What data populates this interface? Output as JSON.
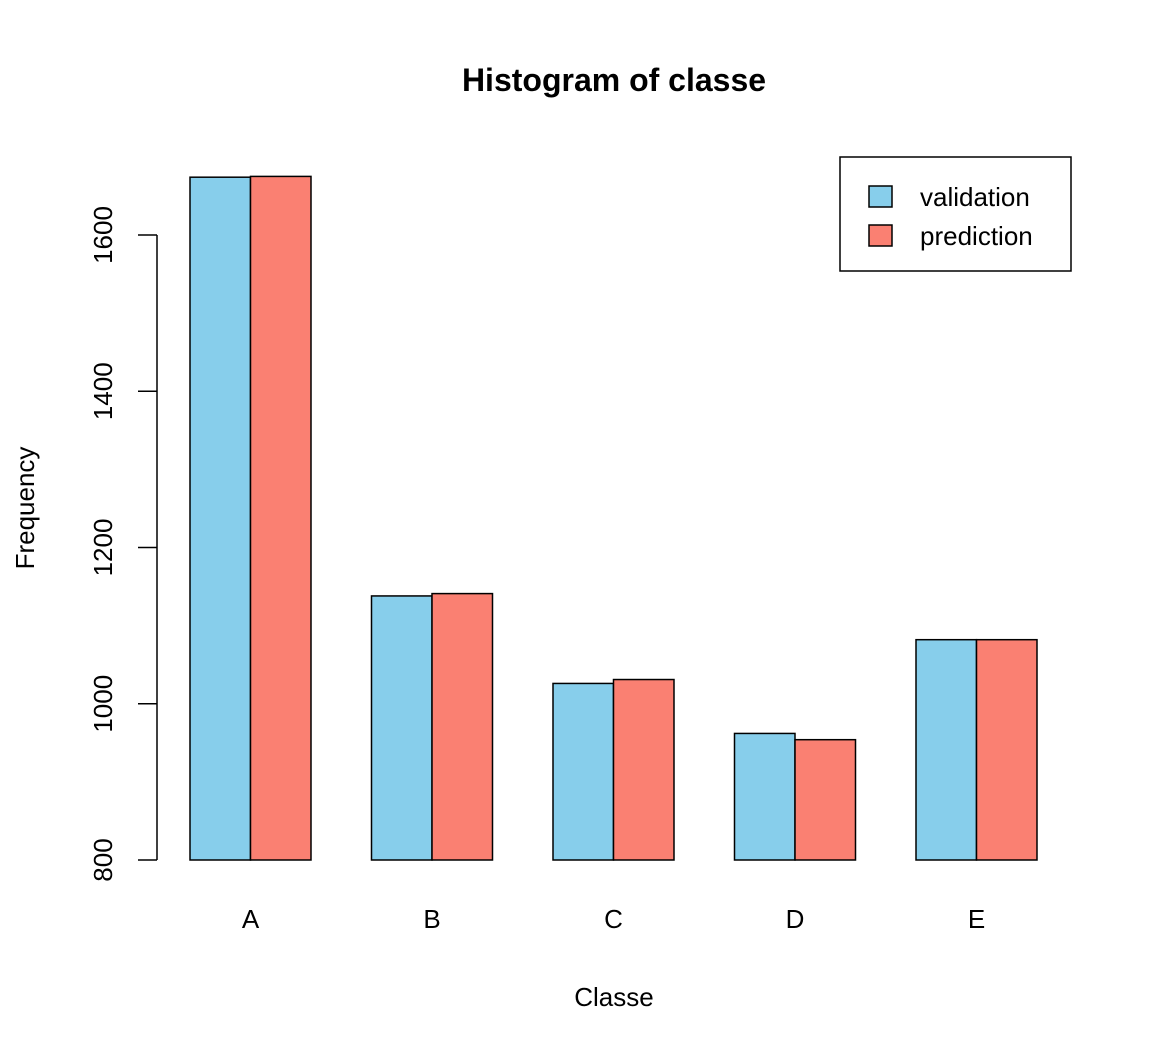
{
  "chart_data": {
    "type": "bar",
    "title": "Histogram of classe",
    "xlabel": "Classe",
    "ylabel": "Frequency",
    "categories": [
      "A",
      "B",
      "C",
      "D",
      "E"
    ],
    "series": [
      {
        "name": "validation",
        "values": [
          1674,
          1138,
          1026,
          962,
          1082
        ],
        "color": "#87CEEB"
      },
      {
        "name": "prediction",
        "values": [
          1675,
          1141,
          1031,
          954,
          1082
        ],
        "color": "#FA8072"
      }
    ],
    "ylim": [
      800,
      1680
    ],
    "yticks": [
      800,
      1000,
      1200,
      1400,
      1600
    ],
    "ytick_labels": [
      "800",
      "1000",
      "1200",
      "1400",
      "1600"
    ],
    "grid": false,
    "legend_position": "top-right",
    "bar_border_color": "#000000"
  }
}
